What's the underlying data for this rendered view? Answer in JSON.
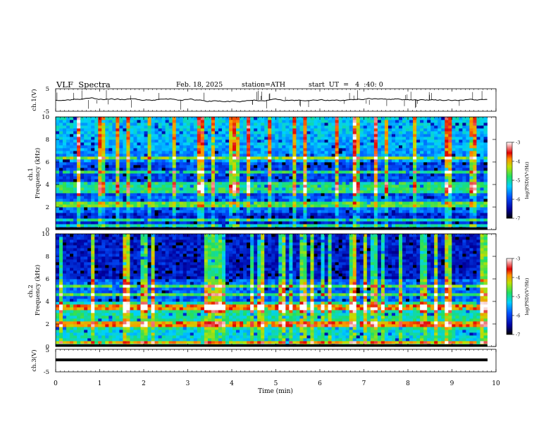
{
  "header": {
    "title": "VLF  Spectra",
    "date": "Feb. 18, 2025",
    "station": "station=ATH",
    "start_time": "start  UT  =   4  :40: 0"
  },
  "chart_data": [
    {
      "type": "line",
      "name": "ch1-waveform",
      "ylabel": "ch.1(V)",
      "ylim": [
        -5,
        5
      ],
      "yticks": [
        "5",
        "-5"
      ],
      "xlim": [
        0,
        10
      ],
      "description_level": 0.0
    },
    {
      "type": "heatmap",
      "name": "ch1-spectrogram",
      "ylabel": "ch.1\nFrequency  (kHz)",
      "ylim": [
        0,
        10
      ],
      "yticks": [
        "0",
        "2",
        "4",
        "6",
        "8",
        "10"
      ],
      "xlim": [
        0,
        9.8
      ],
      "colorbar": {
        "label": "log(PSD)(V²/Hz)",
        "ticks": [
          "-3",
          "-4",
          "-5",
          "-6",
          "-7"
        ],
        "range": [
          -7,
          -3
        ]
      },
      "bands_khz": [
        0.4,
        0.9,
        2.1,
        2.3,
        3.5,
        4.0,
        5.2,
        6.4
      ]
    },
    {
      "type": "heatmap",
      "name": "ch2-spectrogram",
      "ylabel": "ch.2\nFrequency  (kHz)",
      "ylim": [
        0,
        10
      ],
      "yticks": [
        "0",
        "2",
        "4",
        "6",
        "8",
        "10"
      ],
      "xlim": [
        0,
        9.8
      ],
      "colorbar": {
        "label": "log(PSD)(V²/Hz)",
        "ticks": [
          "-3",
          "-4",
          "-5",
          "-6",
          "-7"
        ],
        "range": [
          -7,
          -3
        ]
      },
      "bands_khz": [
        0.4,
        1.9,
        2.1,
        3.4,
        3.6,
        4.6,
        5.3
      ]
    },
    {
      "type": "line",
      "name": "ch3-waveform",
      "ylabel": "ch.3(V)",
      "ylim": [
        -5,
        5
      ],
      "yticks": [
        "5",
        "-5"
      ],
      "xlim": [
        0,
        10
      ],
      "level": 0.0,
      "xlabel": "Time  (min)",
      "xticks": [
        "0",
        "1",
        "2",
        "3",
        "4",
        "5",
        "6",
        "7",
        "8",
        "9",
        "10"
      ]
    }
  ]
}
